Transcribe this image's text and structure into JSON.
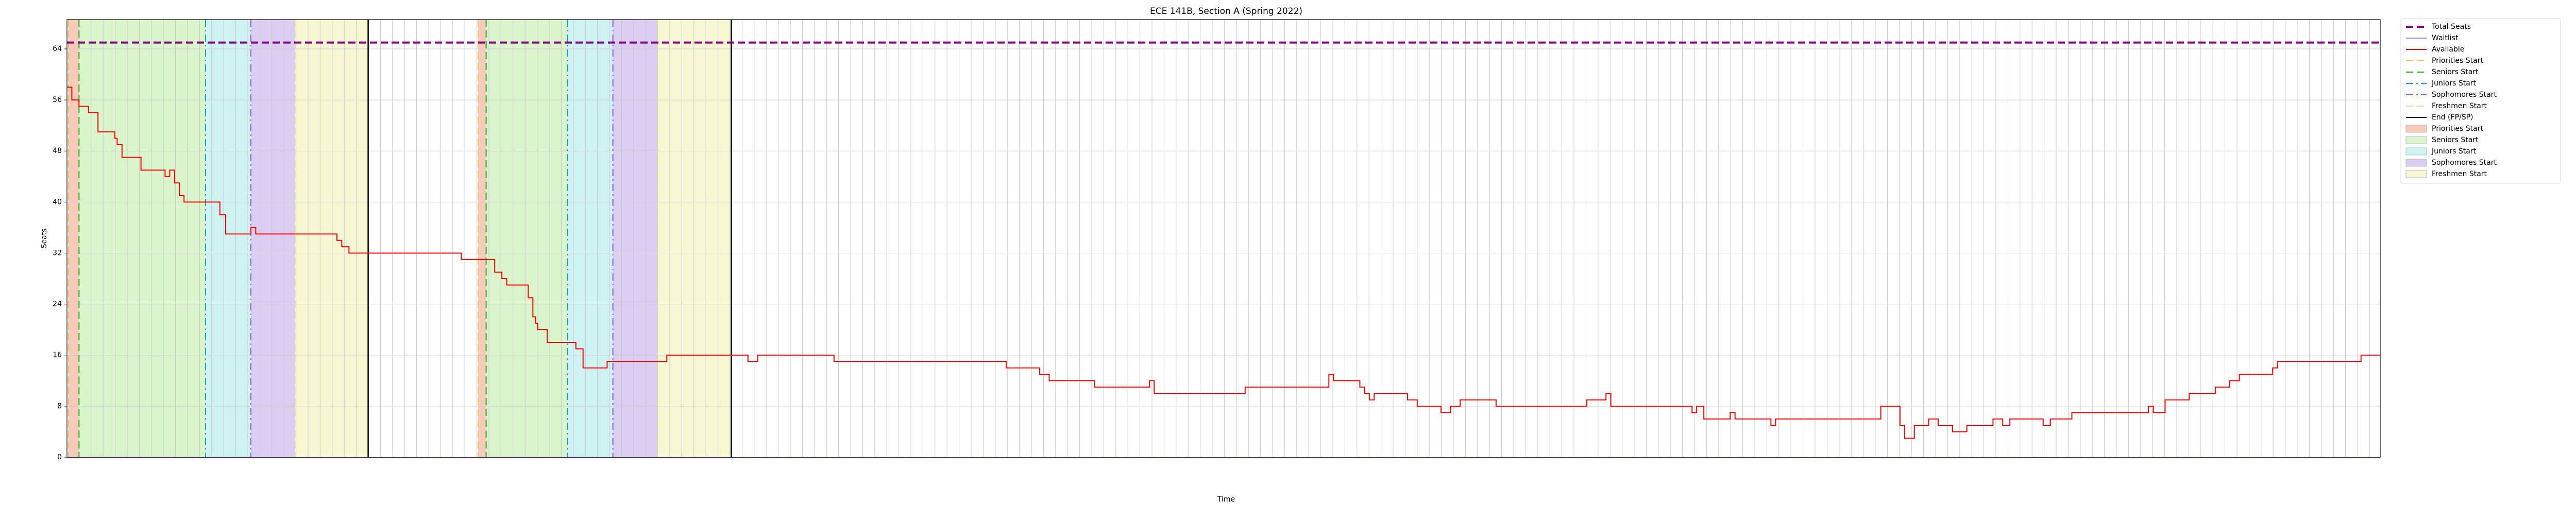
{
  "chart_data": {
    "type": "line",
    "drawstyle": "steps-post",
    "title": "ECE 141B, Section A (Spring 2022)",
    "xlabel": "Time",
    "ylabel": "Seats",
    "xlim": [
      0,
      100
    ],
    "ylim": [
      0,
      68.6
    ],
    "yticks": [
      0,
      8,
      16,
      24,
      32,
      40,
      48,
      56,
      64
    ],
    "grid": true,
    "series": [
      {
        "name": "Total Seats",
        "color": "#800080",
        "dash": "dashed",
        "width": 4,
        "x": [
          0,
          100
        ],
        "values": [
          65,
          65
        ]
      },
      {
        "name": "Waitlist",
        "color": "#9a8cd8",
        "dash": "solid",
        "width": 2,
        "x": [
          0,
          100
        ],
        "values": [
          0,
          0
        ]
      },
      {
        "name": "Available",
        "color": "#ff0000",
        "dash": "solid",
        "width": 2,
        "x": [
          0,
          0.21,
          0.52,
          0.93,
          1.34,
          2.07,
          2.17,
          2.38,
          3.2,
          4.24,
          4.44,
          4.65,
          4.86,
          5.06,
          6.61,
          6.86,
          7.95,
          8.16,
          11.67,
          11.88,
          12.19,
          17.05,
          18.49,
          18.8,
          19.01,
          19.94,
          20.14,
          20.25,
          20.35,
          20.76,
          22,
          22.31,
          23.35,
          25.93,
          29.44,
          29.86,
          33.16,
          40.6,
          42.05,
          42.46,
          44.42,
          46.8,
          47,
          50.93,
          54.55,
          54.75,
          55.89,
          56.1,
          56.3,
          56.51,
          57.95,
          58.37,
          59.4,
          59.81,
          60.23,
          61.78,
          65.7,
          66.53,
          66.74,
          70.25,
          70.45,
          70.76,
          71.9,
          72.11,
          73.66,
          73.86,
          78.41,
          79.24,
          79.44,
          79.86,
          80.48,
          80.89,
          81.51,
          82.13,
          83.26,
          83.68,
          83.99,
          85.43,
          85.74,
          86.67,
          89.98,
          90.19,
          90.7,
          91.74,
          92.87,
          93.49,
          93.91,
          95.35,
          95.56,
          99.17,
          100
        ],
        "values": [
          58,
          56,
          55,
          54,
          51,
          50,
          49,
          47,
          45,
          44,
          45,
          43,
          41,
          40,
          38,
          35,
          36,
          35,
          34,
          33,
          32,
          31,
          29,
          28,
          27,
          25,
          22,
          21,
          20,
          18,
          17,
          14,
          15,
          16,
          15,
          16,
          15,
          14,
          13,
          12,
          11,
          12,
          10,
          11,
          13,
          12,
          11,
          10,
          9,
          10,
          9,
          8,
          7,
          8,
          9,
          8,
          9,
          10,
          8,
          7,
          8,
          6,
          7,
          6,
          5,
          6,
          8,
          5,
          3,
          5,
          6,
          5,
          4,
          5,
          6,
          5,
          6,
          5,
          6,
          7,
          8,
          7,
          9,
          10,
          11,
          12,
          13,
          14,
          15,
          16,
          16
        ]
      }
    ],
    "events": [
      {
        "name": "Priorities Start",
        "color": "#e8c070",
        "dash": "dashed",
        "x": [
          0.06,
          17.77
        ]
      },
      {
        "name": "Seniors Start",
        "color": "#2ca02c",
        "dash": "dashed",
        "x": [
          0.52,
          18.12
        ]
      },
      {
        "name": "Juniors Start",
        "color": "#17a2b8",
        "dash": "dashdot",
        "x": [
          5.99,
          21.63
        ]
      },
      {
        "name": "Sophomores Start",
        "color": "#8a5cd0",
        "dash": "dashdot",
        "x": [
          7.95,
          23.6
        ]
      },
      {
        "name": "Freshmen Start",
        "color": "#e0e0a0",
        "dash": "dashed",
        "x": [
          9.86,
          25.52
        ]
      },
      {
        "name": "End (FP/SP)",
        "color": "#000000",
        "dash": "solid",
        "x": [
          13.02,
          28.72
        ]
      }
    ],
    "regions": [
      {
        "name": "Priorities Start",
        "color": "#f6cbb8",
        "spans": [
          [
            0.06,
            0.52
          ],
          [
            17.77,
            18.12
          ]
        ]
      },
      {
        "name": "Seniors Start",
        "color": "#daf5cb",
        "spans": [
          [
            0.52,
            5.99
          ],
          [
            18.12,
            21.63
          ]
        ]
      },
      {
        "name": "Juniors Start",
        "color": "#cff2f3",
        "spans": [
          [
            5.99,
            7.95
          ],
          [
            21.63,
            23.6
          ]
        ]
      },
      {
        "name": "Sophomores Start",
        "color": "#dccdf3",
        "spans": [
          [
            7.95,
            9.86
          ],
          [
            23.6,
            25.52
          ]
        ]
      },
      {
        "name": "Freshmen Start",
        "color": "#f7f7d3",
        "spans": [
          [
            9.86,
            13.02
          ],
          [
            25.52,
            28.72
          ]
        ]
      }
    ]
  }
}
